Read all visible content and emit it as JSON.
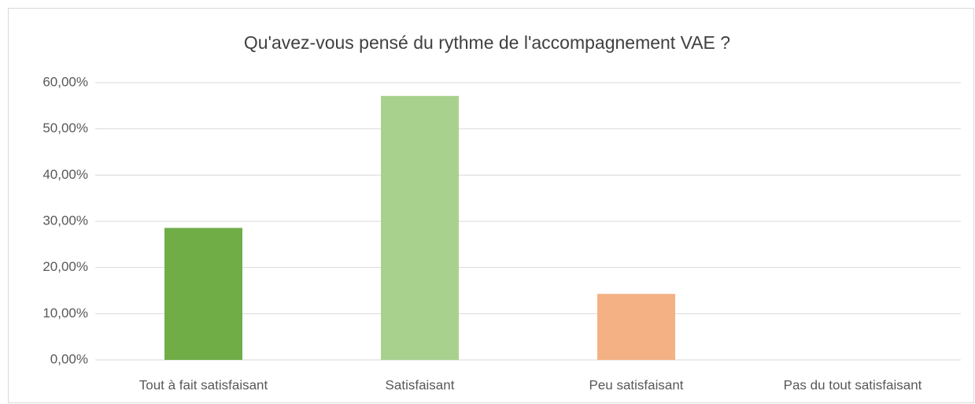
{
  "chart_data": {
    "type": "bar",
    "title": "Qu'avez-vous pensé du rythme de l'accompagnement VAE ?",
    "categories": [
      "Tout à fait satisfaisant",
      "Satisfaisant",
      "Peu satisfaisant",
      "Pas du tout satisfaisant"
    ],
    "values": [
      28.57,
      57.14,
      14.29,
      0
    ],
    "colors": [
      "#70ad47",
      "#a9d18e",
      "#f4b183",
      "#c55a11"
    ],
    "ylim": [
      0,
      60
    ],
    "yticks": [
      {
        "value": 0,
        "label": "0,00%"
      },
      {
        "value": 10,
        "label": "10,00%"
      },
      {
        "value": 20,
        "label": "20,00%"
      },
      {
        "value": 30,
        "label": "30,00%"
      },
      {
        "value": 40,
        "label": "40,00%"
      },
      {
        "value": 50,
        "label": "50,00%"
      },
      {
        "value": 60,
        "label": "60,00%"
      }
    ],
    "grid": true
  }
}
